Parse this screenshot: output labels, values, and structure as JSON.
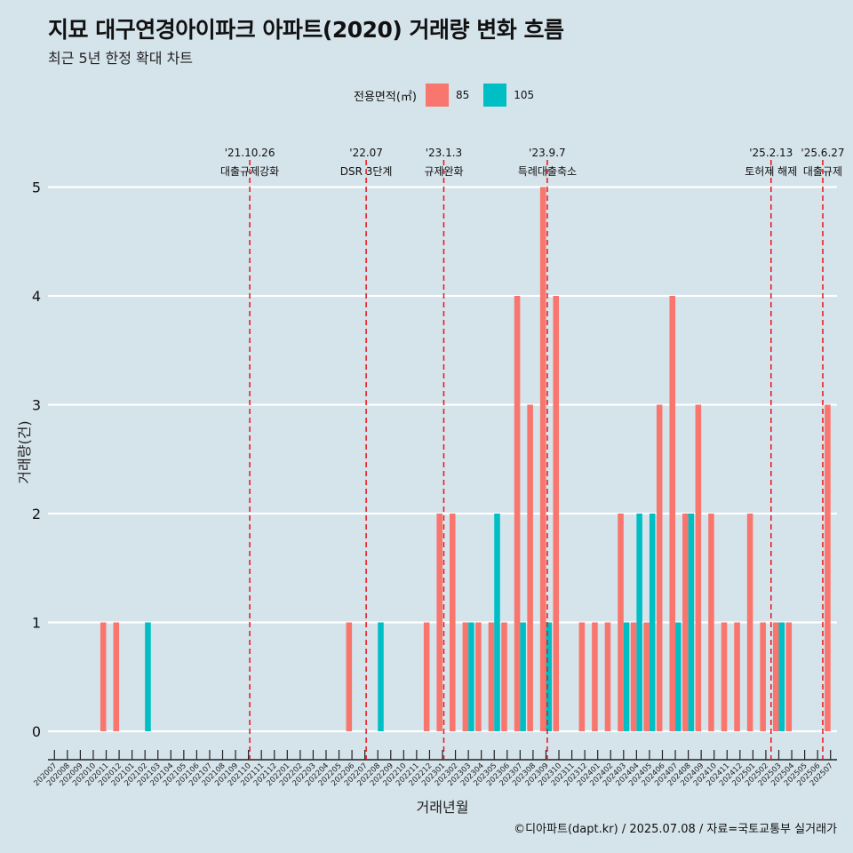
{
  "title": "지묘 대구연경아이파크 아파트(2020) 거래량 변화 흐름",
  "subtitle": "최근 5년 한정 확대 차트",
  "caption": "©디아파트(dapt.kr) / 2025.07.08 / 자료=국토교통부 실거래가",
  "legend": {
    "title": "전용면적(㎡)",
    "items": [
      {
        "label": "85",
        "color": "#F8766D"
      },
      {
        "label": "105",
        "color": "#00BFC4"
      }
    ]
  },
  "chart_data": {
    "type": "bar",
    "xlabel": "거래년월",
    "ylabel": "거래량(건)",
    "ylim": [
      0,
      5
    ],
    "yticks": [
      0,
      1,
      2,
      3,
      4,
      5
    ],
    "grid": true,
    "legend_position": "top",
    "categories": [
      "202007",
      "202008",
      "202009",
      "202010",
      "202011",
      "202012",
      "202101",
      "202102",
      "202103",
      "202104",
      "202105",
      "202106",
      "202107",
      "202108",
      "202109",
      "202110",
      "202111",
      "202112",
      "202201",
      "202202",
      "202203",
      "202204",
      "202205",
      "202206",
      "202207",
      "202208",
      "202209",
      "202210",
      "202211",
      "202212",
      "202301",
      "202302",
      "202303",
      "202304",
      "202305",
      "202306",
      "202307",
      "202308",
      "202309",
      "202310",
      "202311",
      "202312",
      "202401",
      "202402",
      "202403",
      "202404",
      "202405",
      "202406",
      "202407",
      "202408",
      "202409",
      "202410",
      "202411",
      "202412",
      "202501",
      "202502",
      "202503",
      "202504",
      "202505",
      "202506",
      "202507"
    ],
    "series": [
      {
        "name": "85",
        "color": "#F8766D",
        "values": [
          0,
          0,
          0,
          0,
          1,
          1,
          0,
          0,
          0,
          0,
          0,
          0,
          0,
          0,
          0,
          0,
          0,
          0,
          0,
          0,
          0,
          0,
          0,
          1,
          0,
          0,
          0,
          0,
          0,
          1,
          2,
          2,
          1,
          1,
          1,
          1,
          4,
          3,
          5,
          4,
          0,
          1,
          1,
          1,
          2,
          1,
          1,
          3,
          4,
          2,
          3,
          2,
          1,
          1,
          2,
          1,
          1,
          1,
          0,
          0,
          3
        ]
      },
      {
        "name": "105",
        "color": "#00BFC4",
        "values": [
          0,
          0,
          0,
          0,
          0,
          0,
          0,
          1,
          0,
          0,
          0,
          0,
          0,
          0,
          0,
          0,
          0,
          0,
          0,
          0,
          0,
          0,
          0,
          0,
          0,
          1,
          0,
          0,
          0,
          0,
          0,
          0,
          1,
          0,
          2,
          0,
          1,
          0,
          1,
          0,
          0,
          0,
          0,
          0,
          1,
          2,
          2,
          0,
          1,
          2,
          0,
          0,
          0,
          0,
          0,
          0,
          1,
          0,
          0,
          0,
          0
        ]
      }
    ],
    "events": [
      {
        "date": "'21.10.26",
        "label": "대출규제강화",
        "x": 15.1
      },
      {
        "date": "'22.07",
        "label": "DSR 3단계",
        "x": 24.1
      },
      {
        "date": "'23.1.3",
        "label": "규제완화",
        "x": 30.1
      },
      {
        "date": "'23.9.7",
        "label": "특례대출축소",
        "x": 38.1
      },
      {
        "date": "'25.2.13",
        "label": "토허제 해제",
        "x": 55.4
      },
      {
        "date": "'25.6.27",
        "label": "대출규제",
        "x": 59.4
      }
    ]
  }
}
